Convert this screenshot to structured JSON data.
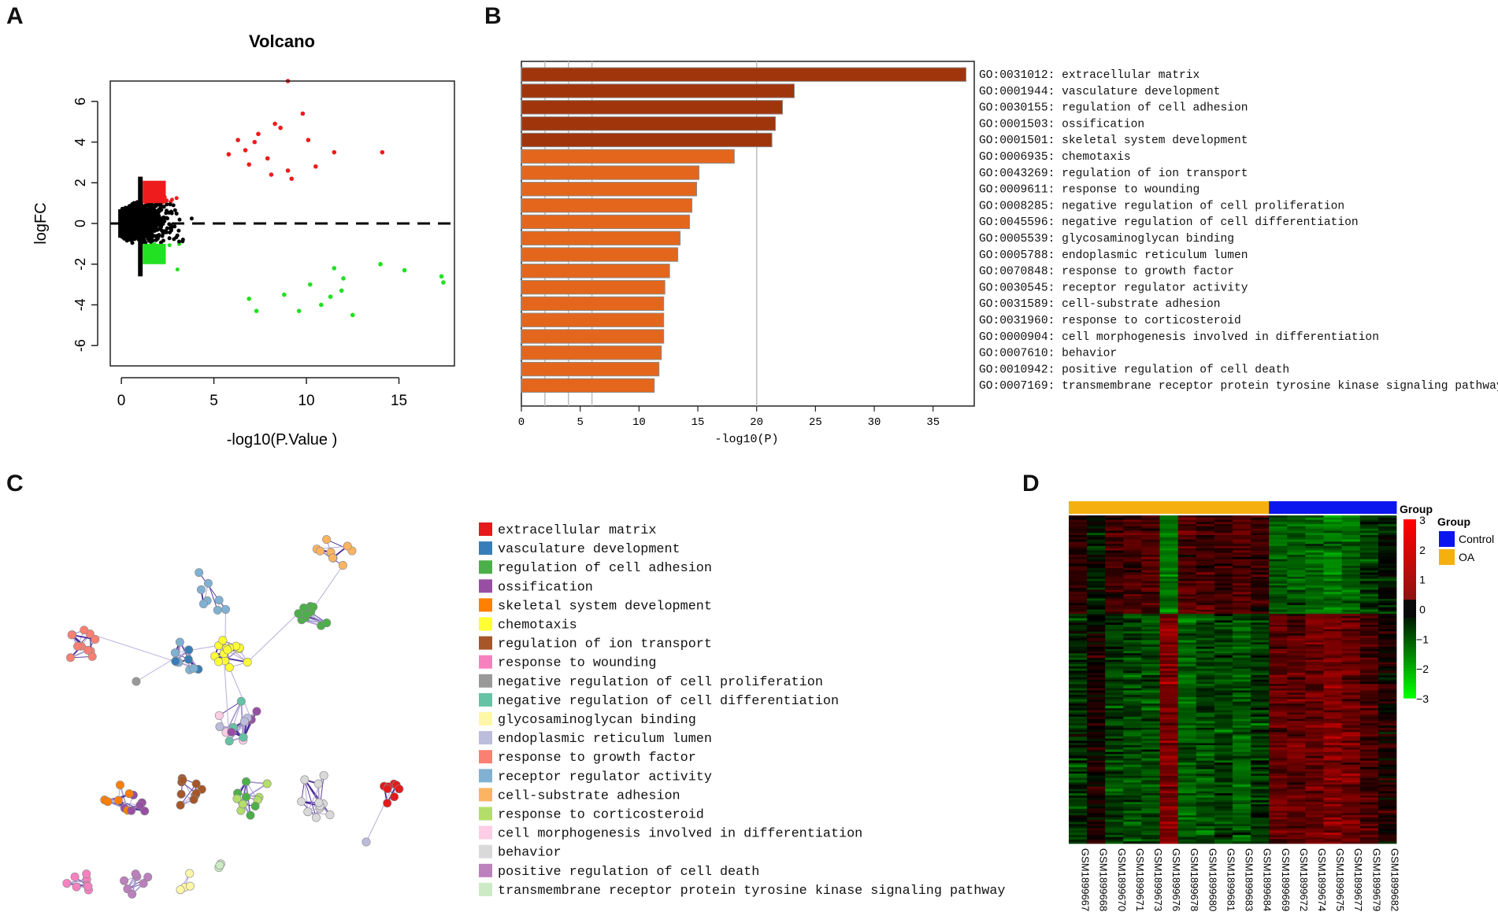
{
  "panels": {
    "a": "A",
    "b": "B",
    "c": "C",
    "d": "D"
  },
  "colors": {
    "up": "#ee1c1c",
    "down": "#22e022",
    "ns": "#000000",
    "bar_dark": "#a0350c",
    "bar_light": "#e4661c",
    "control": "#0b16ee",
    "oa": "#f5b010"
  },
  "chart_data": [
    {
      "id": "volcano",
      "type": "scatter",
      "title": "Volcano",
      "xlabel": "-log10(P.Value )",
      "ylabel": "logFC",
      "xlim": [
        -0.6,
        18
      ],
      "ylim": [
        -7,
        7
      ],
      "xticks": [
        0,
        5,
        10,
        15
      ],
      "yticks": [
        -6,
        -4,
        -2,
        0,
        2,
        4,
        6
      ],
      "threshold_line": 0,
      "series": [
        {
          "name": "up",
          "color": "#ee1c1c",
          "x": [
            9.0,
            14.1,
            10.5,
            11.5,
            9.8,
            8.6,
            10.1,
            9.0,
            8.3,
            7.4,
            6.7,
            7.2,
            8.1,
            6.3,
            7.9,
            5.8,
            9.2,
            6.9
          ],
          "y": [
            7.0,
            3.5,
            2.8,
            3.5,
            5.4,
            4.7,
            4.1,
            2.6,
            4.9,
            4.4,
            3.6,
            4.0,
            2.4,
            4.1,
            3.2,
            3.4,
            2.2,
            2.9
          ]
        },
        {
          "name": "down",
          "color": "#22e022",
          "x": [
            17.3,
            17.4,
            15.3,
            14.0,
            12.5,
            11.9,
            11.3,
            10.8,
            9.6,
            7.3,
            10.2,
            8.8,
            12.0,
            6.9,
            11.5
          ],
          "y": [
            -2.6,
            -2.9,
            -2.3,
            -2.0,
            -4.5,
            -3.3,
            -3.6,
            -4.0,
            -4.3,
            -4.3,
            -3.0,
            -3.5,
            -2.7,
            -3.7,
            -2.2
          ]
        }
      ]
    },
    {
      "id": "go-bar",
      "type": "bar",
      "orientation": "horizontal",
      "xlabel": "-log10(P)",
      "xlim": [
        0,
        38.5
      ],
      "xticks": [
        0,
        5,
        10,
        15,
        20,
        25,
        30,
        35
      ],
      "categories": [
        "GO:0031012: extracellular matrix",
        "GO:0001944: vasculature development",
        "GO:0030155: regulation of cell adhesion",
        "GO:0001503: ossification",
        "GO:0001501: skeletal system development",
        "GO:0006935: chemotaxis",
        "GO:0043269: regulation of ion transport",
        "GO:0009611: response to wounding",
        "GO:0008285: negative regulation of cell proliferation",
        "GO:0045596: negative regulation of cell differentiation",
        "GO:0005539: glycosaminoglycan binding",
        "GO:0005788: endoplasmic reticulum lumen",
        "GO:0070848: response to growth factor",
        "GO:0030545: receptor regulator activity",
        "GO:0031589: cell-substrate adhesion",
        "GO:0031960: response to corticosteroid",
        "GO:0000904: cell morphogenesis involved in differentiation",
        "GO:0007610: behavior",
        "GO:0010942: positive regulation of cell death",
        "GO:0007169: transmembrane receptor protein tyrosine kinase signaling pathway"
      ],
      "values": [
        37.8,
        23.2,
        22.2,
        21.6,
        21.3,
        18.1,
        15.1,
        14.9,
        14.5,
        14.3,
        13.5,
        13.3,
        12.6,
        12.2,
        12.1,
        12.1,
        12.1,
        11.9,
        11.7,
        11.3
      ],
      "dark_count": 5
    },
    {
      "id": "network-legend",
      "type": "table",
      "labels": [
        "extracellular matrix",
        "vasculature development",
        "regulation of cell adhesion",
        "ossification",
        "skeletal system development",
        "chemotaxis",
        "regulation of ion transport",
        "response to wounding",
        "negative regulation of cell proliferation",
        "negative regulation of cell differentiation",
        "glycosaminoglycan binding",
        "endoplasmic reticulum lumen",
        "response to growth factor",
        "receptor regulator activity",
        "cell-substrate adhesion",
        "response to corticosteroid",
        "cell morphogenesis involved in differentiation",
        "behavior",
        "positive regulation of cell death",
        "transmembrane receptor protein tyrosine kinase signaling pathway"
      ],
      "colors": [
        "#e41a1c",
        "#377eb8",
        "#4daf4a",
        "#984ea3",
        "#ff7f00",
        "#ffff33",
        "#a65628",
        "#f781bf",
        "#999999",
        "#66c2a5",
        "#fff7a8",
        "#bcbddc",
        "#fb8072",
        "#80b1d3",
        "#fdb462",
        "#b3de69",
        "#fccde5",
        "#d9d9d9",
        "#bc80bd",
        "#ccebc5"
      ]
    },
    {
      "id": "heatmap",
      "type": "heatmap",
      "samples": [
        "GSM1899667",
        "GSM1899668",
        "GSM1899670",
        "GSM1899671",
        "GSM1899673",
        "GSM1899676",
        "GSM1899678",
        "GSM1899680",
        "GSM1899681",
        "GSM1899683",
        "GSM1899684",
        "GSM1899669",
        "GSM1899672",
        "GSM1899674",
        "GSM1899675",
        "GSM1899677",
        "GSM1899679",
        "GSM1899682"
      ],
      "groups": [
        "OA",
        "OA",
        "OA",
        "OA",
        "OA",
        "OA",
        "OA",
        "OA",
        "OA",
        "OA",
        "OA",
        "Control",
        "Control",
        "Control",
        "Control",
        "Control",
        "Control",
        "Control"
      ],
      "group_header": "Group",
      "legend_title": "Group",
      "legend_items": [
        {
          "label": "Control",
          "color": "#0b16ee"
        },
        {
          "label": "OA",
          "color": "#f5b010"
        }
      ],
      "colorbar_ticks": [
        3,
        2,
        1,
        0,
        -1,
        -2,
        -3
      ],
      "colorbar_range": [
        -3,
        3
      ],
      "block_up_value_OA": 1.2,
      "block_down_value_OA": -1.0
    }
  ]
}
